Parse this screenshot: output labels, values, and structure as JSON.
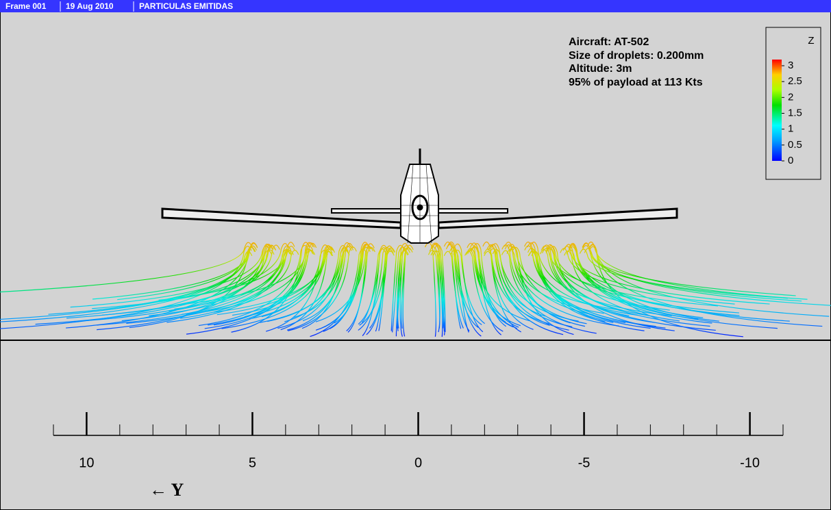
{
  "header": {
    "frame": "Frame 001",
    "date": "19 Aug 2010",
    "title": "PARTICULAS EMITIDAS"
  },
  "chart_data": {
    "type": "particle-paths",
    "annotations": [
      "Aircraft: AT-502",
      "Size of droplets: 0.200mm",
      "Altitude: 3m",
      "95% of payload at 113 Kts"
    ],
    "colorbar": {
      "title": "Z",
      "lim": [
        0,
        3
      ],
      "ticks": [
        3,
        2.5,
        2,
        1.5,
        1,
        0.5,
        0
      ]
    },
    "xlabel": "← Y",
    "xlim": [
      11,
      -11
    ],
    "xticks": [
      10,
      5,
      0,
      -5,
      -10
    ],
    "xminor_ticks": [
      9,
      8,
      7,
      6,
      4,
      3,
      2,
      1,
      -1,
      -2,
      -3,
      -4,
      -6,
      -7,
      -8,
      -9
    ]
  }
}
